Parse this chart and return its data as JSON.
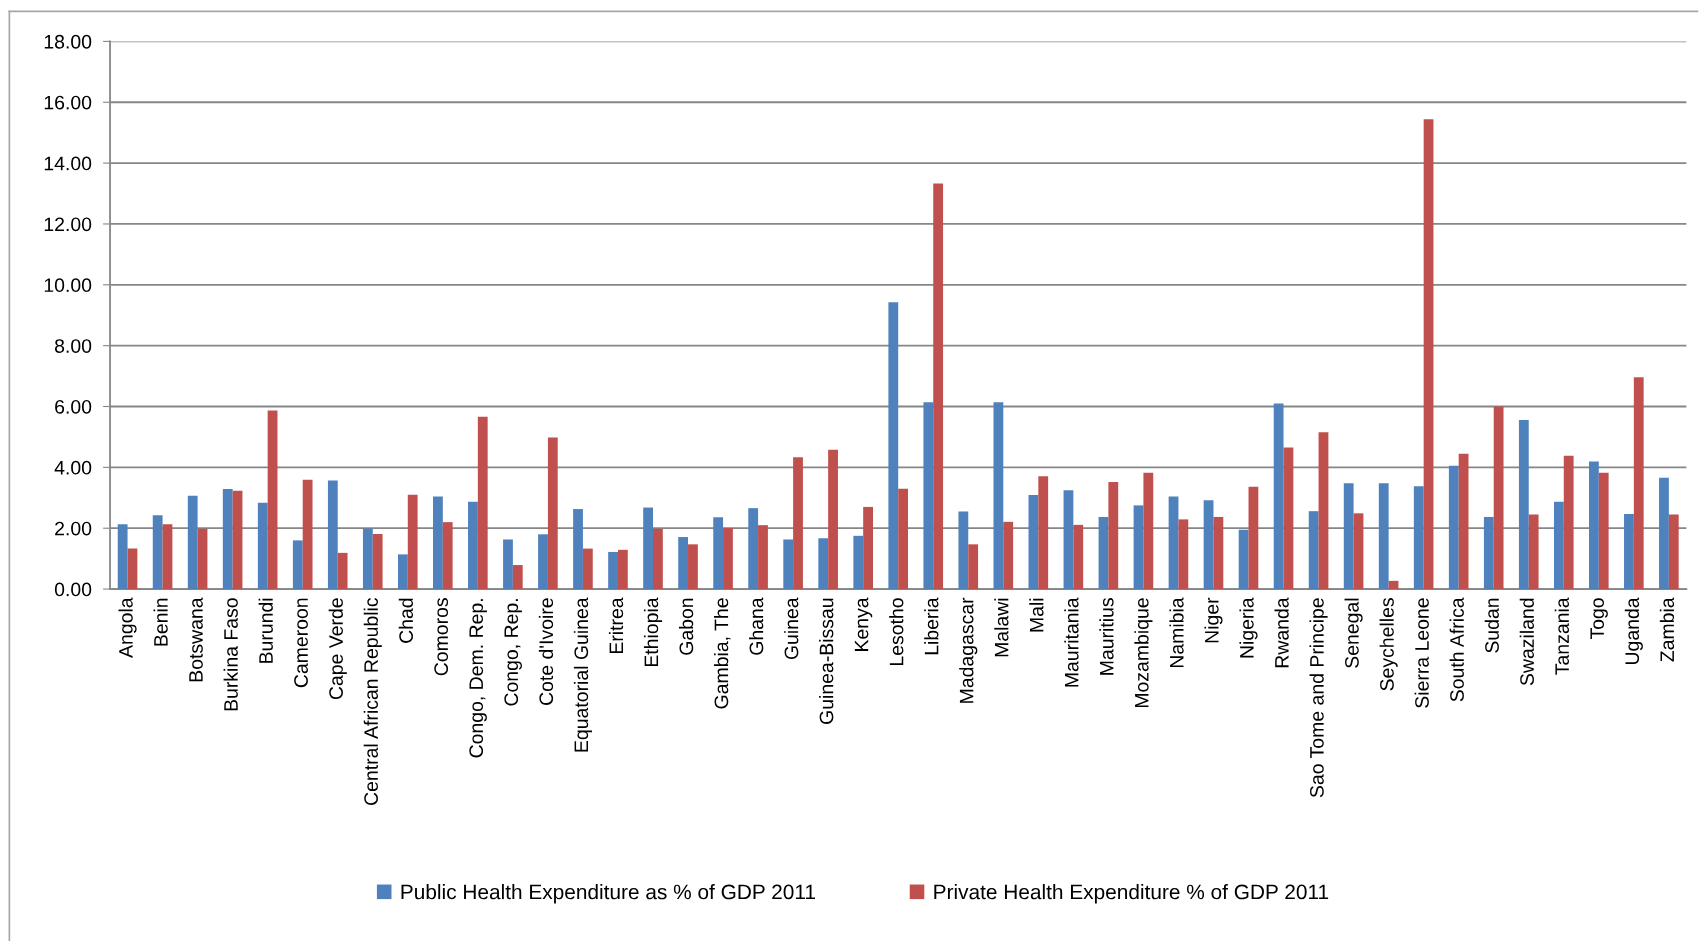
{
  "chart_data": {
    "type": "bar",
    "categories": [
      "Angola",
      "Benin",
      "Botswana",
      "Burkina Faso",
      "Burundi",
      "Cameroon",
      "Cape Verde",
      "Central African Republic",
      "Chad",
      "Comoros",
      "Congo, Dem. Rep.",
      "Congo, Rep.",
      "Cote d'Ivoire",
      "Equatorial Guinea",
      "Eritrea",
      "Ethiopia",
      "Gabon",
      "Gambia, The",
      "Ghana",
      "Guinea",
      "Guinea-Bissau",
      "Kenya",
      "Lesotho",
      "Liberia",
      "Madagascar",
      "Malawi",
      "Mali",
      "Mauritania",
      "Mauritius",
      "Mozambique",
      "Namibia",
      "Niger",
      "Nigeria",
      "Rwanda",
      "Sao Tome and Principe",
      "Senegal",
      "Seychelles",
      "Sierra Leone",
      "South Africa",
      "Sudan",
      "Swaziland",
      "Tanzania",
      "Togo",
      "Uganda",
      "Zambia"
    ],
    "series": [
      {
        "name": "Public Health Expenditure as % of GDP 2011",
        "color": "#4f81bd",
        "values": [
          2.13,
          2.43,
          3.07,
          3.29,
          2.84,
          1.6,
          3.57,
          1.99,
          1.14,
          3.04,
          2.87,
          1.63,
          1.8,
          2.63,
          1.22,
          2.68,
          1.71,
          2.36,
          2.66,
          1.63,
          1.67,
          1.75,
          9.43,
          6.14,
          2.55,
          6.14,
          3.09,
          3.25,
          2.37,
          2.75,
          3.04,
          2.92,
          1.95,
          6.1,
          2.56,
          3.48,
          3.48,
          3.38,
          4.05,
          2.37,
          5.56,
          2.87,
          4.19,
          2.47,
          3.66
        ]
      },
      {
        "name": "Private Health Expenditure % of GDP 2011",
        "color": "#c0504d",
        "values": [
          1.33,
          2.13,
          1.98,
          3.23,
          5.87,
          3.59,
          1.19,
          1.81,
          3.1,
          2.2,
          5.66,
          0.79,
          4.98,
          1.33,
          1.29,
          1.98,
          1.47,
          2.01,
          2.1,
          4.33,
          4.58,
          2.7,
          3.3,
          13.33,
          1.47,
          2.21,
          3.71,
          2.11,
          3.52,
          3.82,
          2.29,
          2.37,
          3.36,
          4.65,
          5.15,
          2.49,
          0.27,
          15.44,
          4.45,
          6.0,
          2.45,
          4.38,
          3.82,
          6.96,
          2.45
        ]
      }
    ],
    "ylim": [
      0,
      18
    ],
    "yticks": [
      {
        "value": 0,
        "label": "0.00"
      },
      {
        "value": 2,
        "label": "2.00"
      },
      {
        "value": 4,
        "label": "4.00"
      },
      {
        "value": 6,
        "label": "6.00"
      },
      {
        "value": 8,
        "label": "8.00"
      },
      {
        "value": 10,
        "label": "10.00"
      },
      {
        "value": 12,
        "label": "12.00"
      },
      {
        "value": 14,
        "label": "14.00"
      },
      {
        "value": 16,
        "label": "16.00"
      },
      {
        "value": 18,
        "label": "18.00"
      }
    ],
    "grid": "y",
    "legend": "bottom"
  }
}
